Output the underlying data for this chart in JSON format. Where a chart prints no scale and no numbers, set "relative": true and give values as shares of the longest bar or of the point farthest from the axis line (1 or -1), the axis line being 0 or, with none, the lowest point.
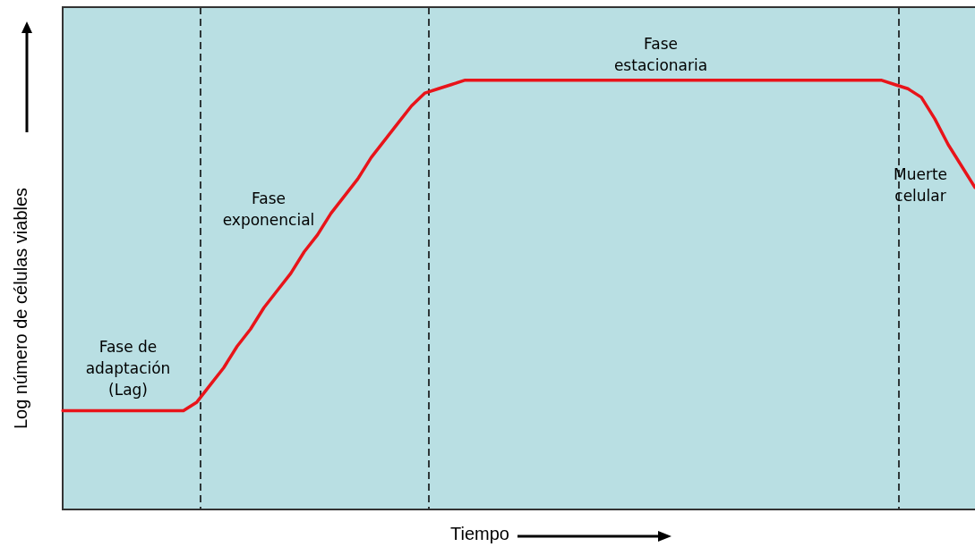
{
  "chart_data": {
    "type": "line",
    "relative": true,
    "xlabel": "Tiempo",
    "ylabel": "Log número de células viables",
    "categories": [
      null,
      null,
      null,
      null,
      null,
      null,
      null,
      null,
      null,
      null,
      null,
      null,
      null,
      null,
      null,
      null,
      null,
      null,
      null,
      null,
      null,
      null,
      null,
      null,
      null,
      null,
      null,
      null,
      null,
      null,
      null,
      null,
      null,
      null,
      null,
      null,
      null,
      null,
      null,
      null,
      null,
      null,
      null,
      null,
      null,
      null,
      null,
      null,
      null,
      null,
      null,
      null,
      null,
      null,
      null,
      null,
      null,
      null,
      null,
      null,
      null,
      null,
      null,
      null,
      null,
      null,
      null,
      null,
      null
    ],
    "series": [
      {
        "color": "#e8141a",
        "values": [
          0.23,
          0.23,
          0.23,
          0.23,
          0.23,
          0.23,
          0.23,
          0.23,
          0.23,
          0.23,
          0.25,
          0.29,
          0.33,
          0.38,
          0.42,
          0.47,
          0.51,
          0.55,
          0.6,
          0.64,
          0.69,
          0.73,
          0.77,
          0.82,
          0.86,
          0.9,
          0.94,
          0.97,
          0.98,
          0.99,
          1,
          1,
          1,
          1,
          1,
          1,
          1,
          1,
          1,
          1,
          1,
          1,
          1,
          1,
          1,
          1,
          1,
          1,
          1,
          1,
          1,
          1,
          1,
          1,
          1,
          1,
          1,
          1,
          1,
          1,
          1,
          1,
          0.99,
          0.98,
          0.96,
          0.91,
          0.85,
          0.8,
          0.75
        ]
      }
    ],
    "annotations": [
      "Fase de\nadaptación\n(Lag)",
      "Fase\nexponencial",
      "Fase\nestacionaria",
      "Muerte\ncelular"
    ],
    "marker": "none",
    "line_style": "solid",
    "legend": false
  }
}
